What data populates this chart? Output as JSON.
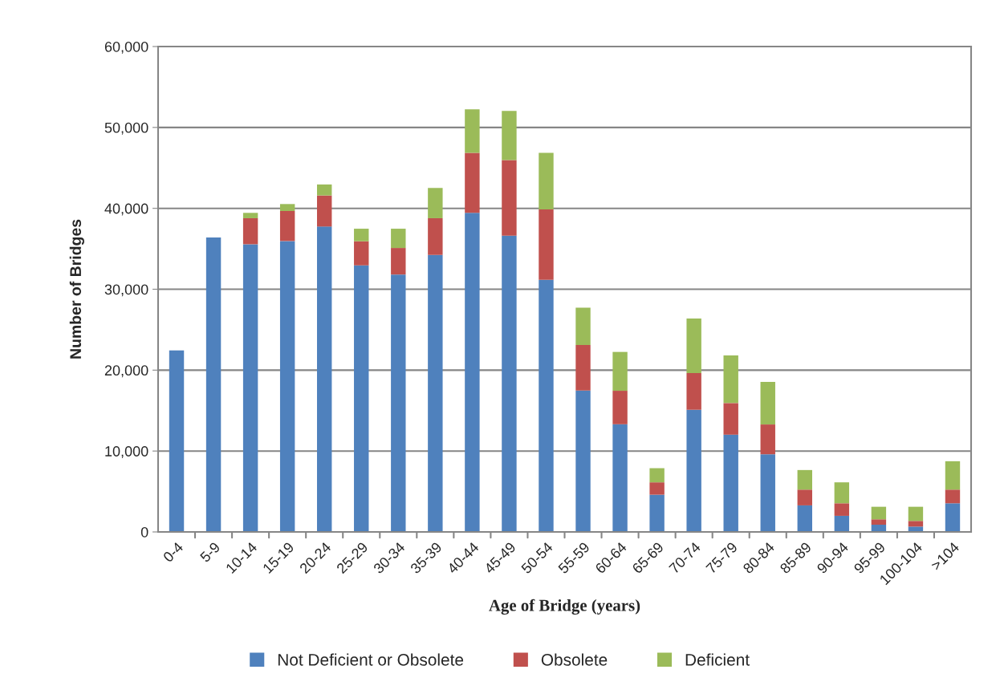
{
  "chart_data": {
    "type": "bar",
    "stacked": true,
    "xlabel": "Age of Bridge (years)",
    "ylabel": "Number of Bridges",
    "categories": [
      "0-4",
      "5-9",
      "10-14",
      "15-19",
      "20-24",
      "25-29",
      "30-34",
      "35-39",
      "40-44",
      "45-49",
      "50-54",
      "55-59",
      "60-64",
      "65-69",
      "70-74",
      "75-79",
      "80-84",
      "85-89",
      "90-94",
      "95-99",
      "100-104",
      ">104"
    ],
    "series": [
      {
        "name": "Not Deficient or Obsolete",
        "color": "#4f81bd",
        "values": [
          22450,
          36390,
          35560,
          35960,
          37750,
          32950,
          31820,
          34240,
          39440,
          36620,
          31160,
          17480,
          13310,
          4600,
          15100,
          12020,
          9600,
          3280,
          1990,
          890,
          660,
          3540
        ]
      },
      {
        "name": "Obsolete",
        "color": "#c0504d",
        "values": [
          null,
          null,
          3220,
          3710,
          3840,
          2980,
          3280,
          4540,
          7410,
          9340,
          8710,
          5630,
          4140,
          1530,
          4540,
          3910,
          3680,
          1950,
          1550,
          670,
          700,
          1690
        ]
      },
      {
        "name": "Deficient",
        "color": "#9bbb59",
        "values": [
          null,
          null,
          660,
          860,
          1360,
          1550,
          2380,
          3740,
          5400,
          6090,
          6980,
          4610,
          4800,
          1750,
          6750,
          5890,
          5260,
          2420,
          2590,
          1550,
          1750,
          3510
        ]
      }
    ],
    "ylim": [
      0,
      60000
    ],
    "yticks": [
      {
        "value": 0,
        "label": "0"
      },
      {
        "value": 10000,
        "label": "10,000"
      },
      {
        "value": 20000,
        "label": "20,000"
      },
      {
        "value": 30000,
        "label": "30,000"
      },
      {
        "value": 40000,
        "label": "40,000"
      },
      {
        "value": 50000,
        "label": "50,000"
      },
      {
        "value": 60000,
        "label": "60,000"
      }
    ],
    "grid": "y",
    "legend": "bottom"
  }
}
